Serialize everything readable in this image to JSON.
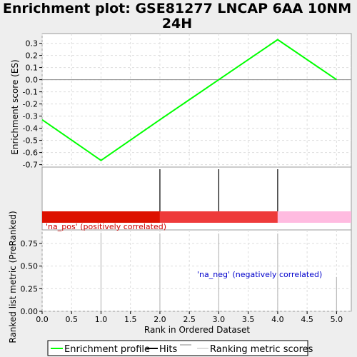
{
  "chart_data": {
    "type": "line",
    "title": [
      "Enrichment plot: GSE81277 LNCAP 6AA 10NM",
      "24H"
    ],
    "xlabel": "Rank in Ordered Dataset",
    "xlim": [
      0,
      5.25
    ],
    "x_ticks": [
      "0.0",
      "0.5",
      "1.0",
      "1.5",
      "2.0",
      "2.5",
      "3.0",
      "3.5",
      "4.0",
      "4.5",
      "5.0"
    ],
    "grid": true,
    "legend_position": "bottom",
    "enrichment_panel": {
      "ylabel": "Enrichment score (ES)",
      "ylim": [
        -0.72,
        0.38
      ],
      "y_ticks": [
        "0.3",
        "0.2",
        "0.1",
        "0.0",
        "-0.1",
        "-0.2",
        "-0.3",
        "-0.4",
        "-0.5",
        "-0.6",
        "-0.7"
      ],
      "series": [
        {
          "name": "Enrichment profile",
          "color": "#00ff00",
          "x": [
            0,
            1,
            2,
            3,
            4,
            5
          ],
          "y": [
            -0.33,
            -0.665,
            -0.33,
            0.0,
            0.33,
            0.0
          ]
        }
      ]
    },
    "hits_panel": {
      "hits_x": [
        2,
        3,
        4
      ],
      "band": [
        {
          "from": 0,
          "to": 2,
          "color": "#dd1100"
        },
        {
          "from": 2,
          "to": 4,
          "color": "#ee3a3a"
        },
        {
          "from": 4,
          "to": 5.25,
          "color": "#ffbbe0"
        }
      ]
    },
    "ranking_panel": {
      "ylabel": "Ranked list metric (PreRanked)",
      "ylim": [
        0,
        0.9
      ],
      "y_ticks": [
        "0.75",
        "0.50",
        "0.25",
        "0.00"
      ],
      "x": [
        1,
        2,
        3,
        4,
        5
      ],
      "values": [
        0.87,
        0.86,
        0.86,
        0.86,
        0.38
      ],
      "annotations": [
        {
          "text": "'na_pos' (positively correlated)",
          "color": "#cc0000"
        },
        {
          "text": "'na_neg' (negatively correlated)",
          "color": "#0000cc"
        }
      ]
    },
    "legend": [
      {
        "label": "Enrichment profile",
        "color": "#00ff00"
      },
      {
        "label": "Hits",
        "color": "#000000"
      },
      {
        "label": "Ranking metric scores",
        "color": "#bbbbbb"
      }
    ]
  }
}
